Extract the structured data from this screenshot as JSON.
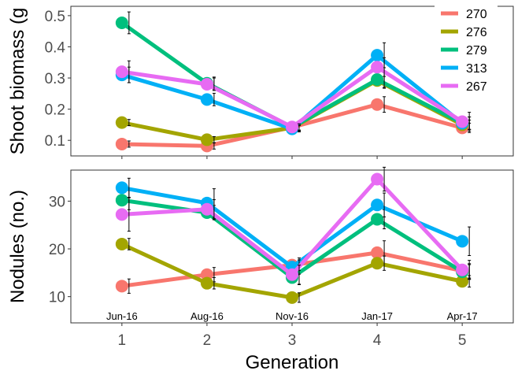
{
  "chart_data": {
    "type": "line",
    "xlabel": "Generation",
    "x": [
      1,
      2,
      3,
      4,
      5
    ],
    "xlim": [
      0.4,
      5.6
    ],
    "date_labels": [
      "Jun-16",
      "Aug-16",
      "Nov-16",
      "Jan-17",
      "Apr-17"
    ],
    "legend": {
      "position": "top-right",
      "order": [
        "270",
        "276",
        "279",
        "313",
        "267"
      ]
    },
    "colors": {
      "270": "#F8766D",
      "276": "#A3A500",
      "279": "#00BF7D",
      "313": "#00B0F6",
      "267": "#E76BF3"
    },
    "panels": [
      {
        "ylabel": "Shoot biomass (g",
        "ylim": [
          0.05,
          0.53
        ],
        "yticks": [
          0.1,
          0.2,
          0.3,
          0.4,
          0.5
        ],
        "ytick_labels": [
          "0.1",
          "0.2",
          "0.3",
          "0.4",
          "0.5"
        ],
        "series": [
          {
            "name": "270",
            "values": [
              0.088,
              0.082,
              0.142,
              0.215,
              0.14
            ],
            "errors": [
              0.01,
              0.01,
              0.01,
              0.025,
              0.015
            ]
          },
          {
            "name": "276",
            "values": [
              0.157,
              0.102,
              0.14,
              0.292,
              0.15
            ],
            "errors": [
              0.01,
              0.01,
              0.01,
              0.025,
              0.015
            ]
          },
          {
            "name": "279",
            "values": [
              0.477,
              0.283,
              0.142,
              0.295,
              0.155
            ],
            "errors": [
              0.035,
              0.02,
              0.01,
              0.025,
              0.02
            ]
          },
          {
            "name": "313",
            "values": [
              0.31,
              0.231,
              0.137,
              0.373,
              0.155
            ],
            "errors": [
              0.025,
              0.02,
              0.01,
              0.04,
              0.02
            ]
          },
          {
            "name": "267",
            "values": [
              0.32,
              0.28,
              0.143,
              0.335,
              0.16
            ],
            "errors": [
              0.035,
              0.02,
              0.01,
              0.03,
              0.03
            ]
          }
        ]
      },
      {
        "ylabel": "Nodules (no.)",
        "ylim": [
          4.5,
          36.5
        ],
        "yticks": [
          10,
          20,
          30
        ],
        "ytick_labels": [
          "10",
          "20",
          "30"
        ],
        "series": [
          {
            "name": "270",
            "values": [
              12.2,
              14.6,
              16.6,
              19.2,
              15.4
            ],
            "errors": [
              1.5,
              1.5,
              1.5,
              2.5,
              1.5
            ]
          },
          {
            "name": "276",
            "values": [
              21,
              12.8,
              9.8,
              17,
              13.2
            ],
            "errors": [
              1.2,
              1.2,
              1.0,
              1.5,
              1.2
            ]
          },
          {
            "name": "279",
            "values": [
              30.2,
              27.6,
              14,
              26.2,
              15.2
            ],
            "errors": [
              2.0,
              1.5,
              1.5,
              2.0,
              1.5
            ]
          },
          {
            "name": "313",
            "values": [
              32.8,
              29.6,
              16.2,
              29.2,
              21.6
            ],
            "errors": [
              2.0,
              3.0,
              1.5,
              2.5,
              3.0
            ]
          },
          {
            "name": "267",
            "values": [
              27.2,
              28.3,
              14.6,
              34.6,
              15.6
            ],
            "errors": [
              3.5,
              2.0,
              2.0,
              2.5,
              2.0
            ]
          }
        ]
      }
    ]
  }
}
